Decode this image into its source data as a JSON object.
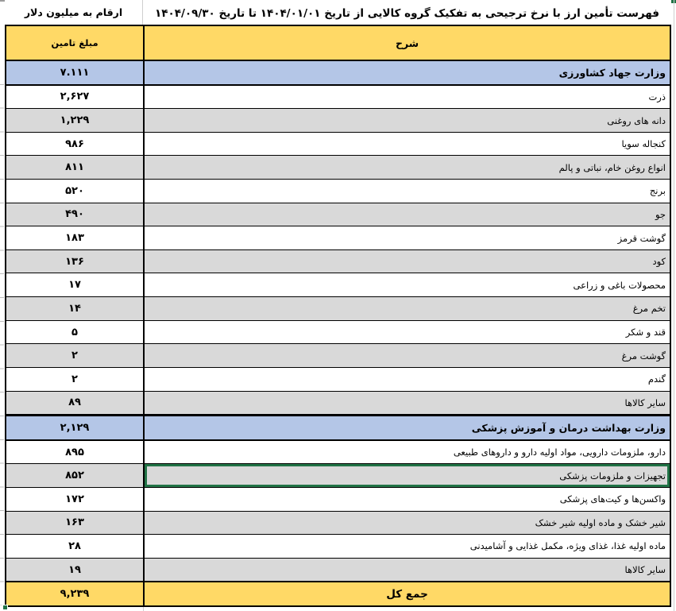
{
  "sheet": {
    "units_note": "ارقام به میلیون دلار",
    "title": "فهرست تأمین ارز با نرخ ترجیحی به تفکیک گروه کالایی از تاریخ ۱۴۰۴/۰۱/۰۱ تا تاریخ ۱۴۰۴/۰۹/۳۰"
  },
  "columns": {
    "amount_header": "مبلغ تامین",
    "description_header": "شرح"
  },
  "rows": [
    {
      "label": "وزارت جهاد کشاورزی",
      "value": "۷.۱۱۱",
      "type": "section",
      "shade": "blue",
      "selected": false
    },
    {
      "label": "ذرت",
      "value": "۲,۶۲۷",
      "type": "item",
      "shade": "white",
      "selected": false
    },
    {
      "label": "دانه های روغنی",
      "value": "۱,۲۲۹",
      "type": "item",
      "shade": "gray",
      "selected": false
    },
    {
      "label": "کنجاله سویا",
      "value": "۹۸۶",
      "type": "item",
      "shade": "white",
      "selected": false
    },
    {
      "label": "انواع روغن خام، نباتی و پالم",
      "value": "۸۱۱",
      "type": "item",
      "shade": "gray",
      "selected": false
    },
    {
      "label": "برنج",
      "value": "۵۲۰",
      "type": "item",
      "shade": "white",
      "selected": false
    },
    {
      "label": "جو",
      "value": "۴۹۰",
      "type": "item",
      "shade": "gray",
      "selected": false
    },
    {
      "label": "گوشت قرمز",
      "value": "۱۸۳",
      "type": "item",
      "shade": "white",
      "selected": false
    },
    {
      "label": "کود",
      "value": "۱۳۶",
      "type": "item",
      "shade": "gray",
      "selected": false
    },
    {
      "label": "محصولات باغی و زراعی",
      "value": "۱۷",
      "type": "item",
      "shade": "white",
      "selected": false
    },
    {
      "label": "تخم مرغ",
      "value": "۱۴",
      "type": "item",
      "shade": "gray",
      "selected": false
    },
    {
      "label": "قند و شکر",
      "value": "۵",
      "type": "item",
      "shade": "white",
      "selected": false
    },
    {
      "label": "گوشت مرغ",
      "value": "۲",
      "type": "item",
      "shade": "gray",
      "selected": false
    },
    {
      "label": "گندم",
      "value": "۲",
      "type": "item",
      "shade": "white",
      "selected": false
    },
    {
      "label": "سایر کالاها",
      "value": "۸۹",
      "type": "item",
      "shade": "gray",
      "selected": false
    },
    {
      "label": "وزارت بهداشت درمان و آموزش پزشکی",
      "value": "۲,۱۲۹",
      "type": "section",
      "shade": "blue",
      "selected": false
    },
    {
      "label": "دارو، ملزومات دارویی، مواد اولیه دارو و داروهای طبیعی",
      "value": "۸۹۵",
      "type": "item",
      "shade": "white",
      "selected": false
    },
    {
      "label": "تجهیزات و ملزومات پزشکی",
      "value": "۸۵۲",
      "type": "item",
      "shade": "gray",
      "selected": true
    },
    {
      "label": "واکسن‌ها و کیت‌های پزشکی",
      "value": "۱۷۲",
      "type": "item",
      "shade": "white",
      "selected": false
    },
    {
      "label": "شیر خشک و ماده اولیه شیر خشک",
      "value": "۱۶۳",
      "type": "item",
      "shade": "gray",
      "selected": false
    },
    {
      "label": "ماده اولیه غذا، غذای ویژه، مکمل غذایی و آشامیدنی",
      "value": "۲۸",
      "type": "item",
      "shade": "white",
      "selected": false
    },
    {
      "label": "سایر کالاها",
      "value": "۱۹",
      "type": "item",
      "shade": "gray",
      "selected": false
    },
    {
      "label": "جمع کل",
      "value": "۹,۲۳۹",
      "type": "total",
      "shade": "yellow",
      "selected": false
    }
  ],
  "colors": {
    "header_fill": "#FFD966",
    "section_fill": "#B4C6E7",
    "alt_row_fill": "#D9D9D9",
    "total_fill": "#FFD966",
    "selection_green": "#217346",
    "grid_black": "#000000"
  }
}
